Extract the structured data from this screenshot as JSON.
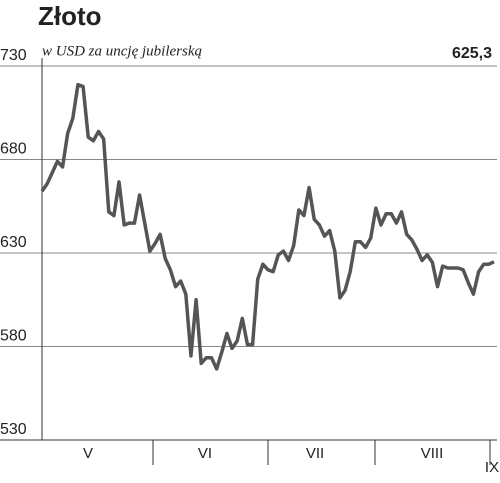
{
  "chart_data": {
    "type": "line",
    "title": "Złoto",
    "subtitle": "w USD za uncję jubilerską",
    "last_value_label": "625,3",
    "x_labels": [
      "V",
      "VI",
      "VII",
      "VIII",
      "IX"
    ],
    "series": [
      {
        "color": "#555555",
        "values": [
          663,
          667,
          673,
          679,
          676,
          694,
          702,
          720,
          719,
          692,
          690,
          695,
          691,
          652,
          650,
          668,
          645,
          646,
          646,
          661,
          646,
          631,
          635,
          640,
          627,
          621,
          612,
          615,
          608,
          575,
          605,
          571,
          574,
          574,
          568,
          577,
          587,
          579,
          583,
          595,
          581,
          581,
          616,
          624,
          621,
          620,
          629,
          631,
          626,
          634,
          653,
          650,
          665,
          648,
          645,
          639,
          642,
          631,
          606,
          610,
          620,
          636,
          636,
          633,
          638,
          654,
          645,
          651,
          651,
          646,
          652,
          640,
          637,
          632,
          626,
          629,
          625,
          612,
          623,
          622,
          622,
          622,
          621,
          614,
          608,
          620,
          624,
          624,
          625.3
        ]
      }
    ],
    "ylim": [
      530,
      730
    ],
    "yticks": [
      530,
      580,
      630,
      680,
      730
    ],
    "grid": true
  }
}
